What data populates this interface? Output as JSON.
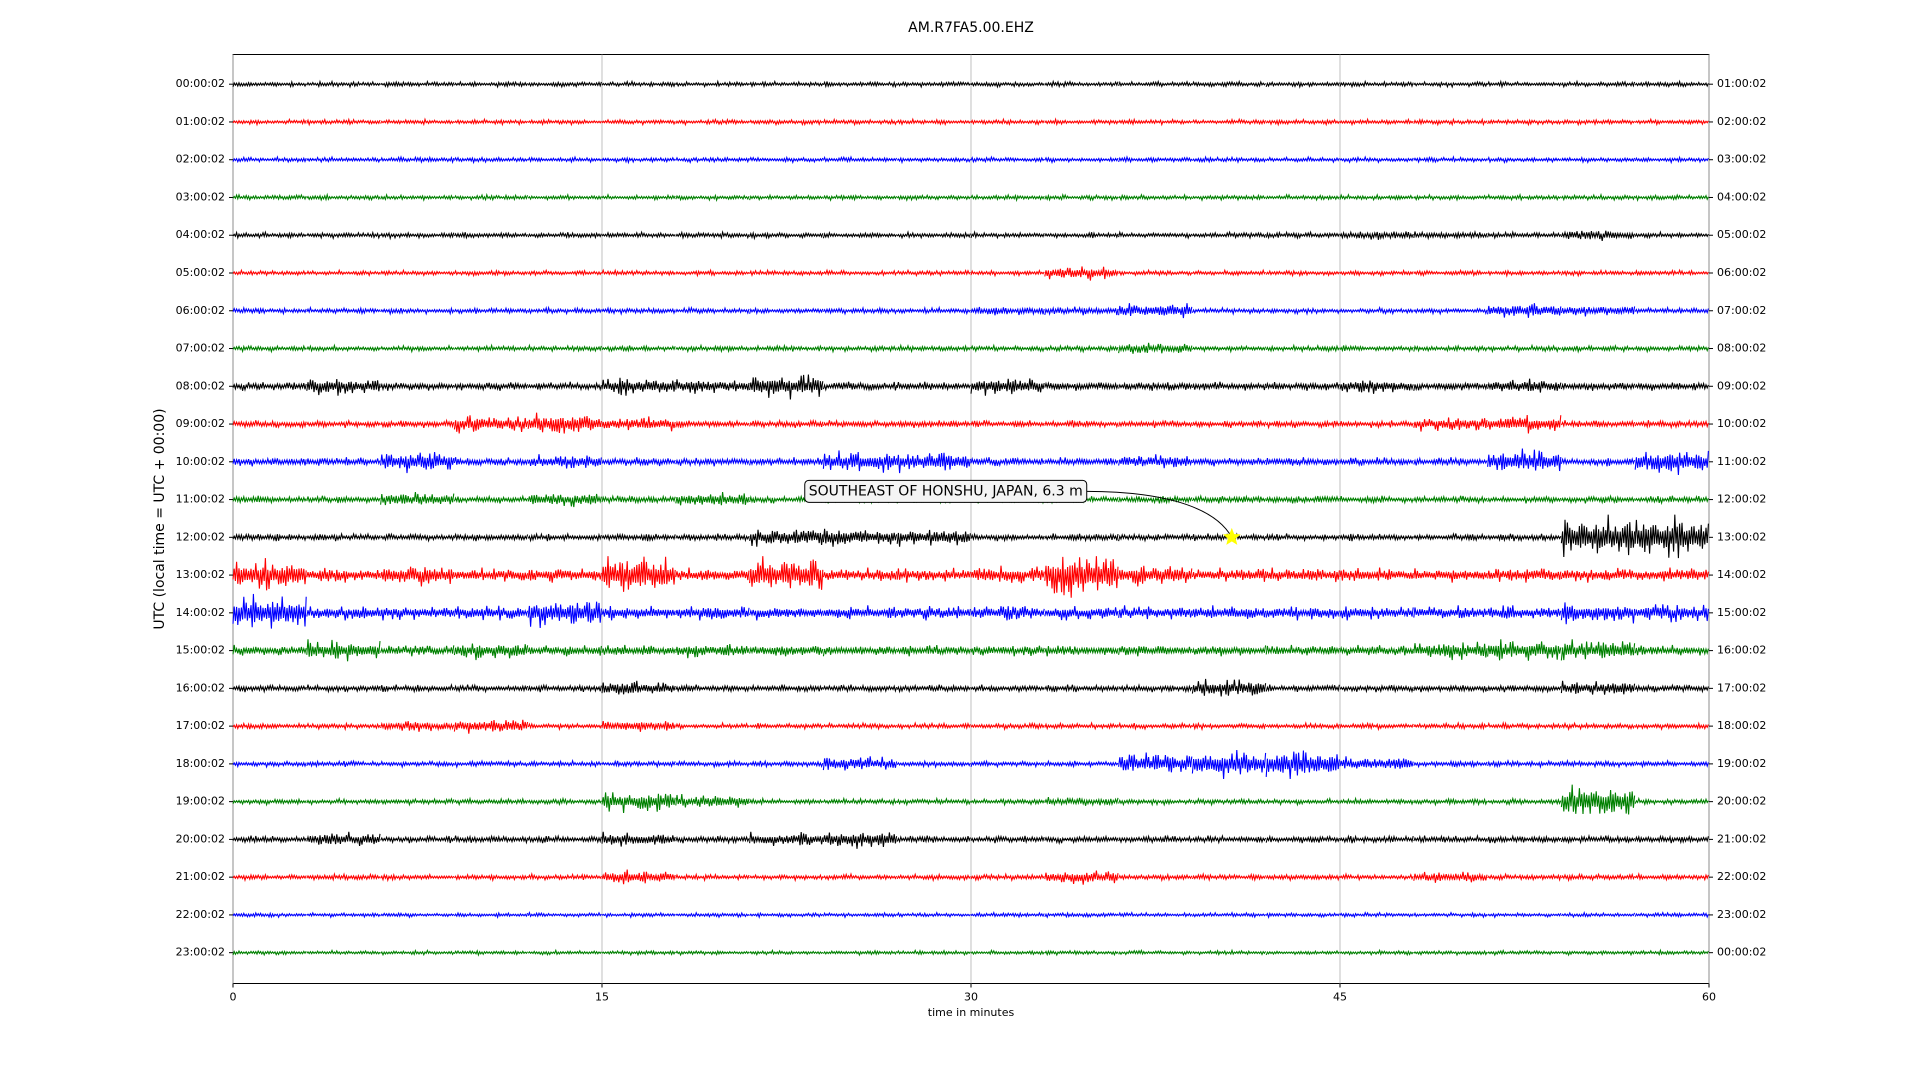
{
  "chart_data": {
    "type": "dayplot",
    "title": "AM.R7FA5.00.EHZ",
    "xlabel": "time in minutes",
    "ylabel": "UTC (local time = UTC + 00:00)",
    "xlim": [
      0,
      60
    ],
    "xticks": [
      0,
      15,
      30,
      45,
      60
    ],
    "grid": true,
    "x": [
      0,
      3,
      6,
      9,
      12,
      15,
      18,
      21,
      24,
      27,
      30,
      33,
      36,
      39,
      42,
      45,
      48,
      51,
      54,
      57
    ],
    "right_labels": [
      "01:00:02",
      "02:00:02",
      "03:00:02",
      "04:00:02",
      "05:00:02",
      "06:00:02",
      "07:00:02",
      "08:00:02",
      "09:00:02",
      "10:00:02",
      "11:00:02",
      "12:00:02",
      "13:00:02",
      "14:00:02",
      "15:00:02",
      "16:00:02",
      "17:00:02",
      "18:00:02",
      "19:00:02",
      "20:00:02",
      "21:00:02",
      "22:00:02",
      "23:00:02",
      "00:00:02"
    ],
    "series": [
      {
        "name": "00:00:02",
        "color": "#000000",
        "values": [
          0.07,
          0.07,
          0.07,
          0.07,
          0.07,
          0.07,
          0.07,
          0.07,
          0.07,
          0.07,
          0.07,
          0.07,
          0.07,
          0.07,
          0.07,
          0.07,
          0.07,
          0.07,
          0.07,
          0.07
        ]
      },
      {
        "name": "01:00:02",
        "color": "#ff0000",
        "values": [
          0.07,
          0.07,
          0.07,
          0.07,
          0.07,
          0.07,
          0.07,
          0.07,
          0.07,
          0.07,
          0.07,
          0.07,
          0.07,
          0.07,
          0.07,
          0.07,
          0.07,
          0.07,
          0.07,
          0.07
        ]
      },
      {
        "name": "02:00:02",
        "color": "#0000ff",
        "values": [
          0.07,
          0.07,
          0.07,
          0.07,
          0.07,
          0.07,
          0.07,
          0.07,
          0.07,
          0.07,
          0.07,
          0.07,
          0.07,
          0.07,
          0.07,
          0.07,
          0.07,
          0.07,
          0.07,
          0.07
        ]
      },
      {
        "name": "03:00:02",
        "color": "#008000",
        "values": [
          0.07,
          0.07,
          0.07,
          0.07,
          0.07,
          0.07,
          0.07,
          0.07,
          0.07,
          0.07,
          0.07,
          0.07,
          0.07,
          0.07,
          0.07,
          0.07,
          0.07,
          0.07,
          0.07,
          0.07
        ]
      },
      {
        "name": "04:00:02",
        "color": "#000000",
        "values": [
          0.08,
          0.08,
          0.08,
          0.08,
          0.08,
          0.08,
          0.08,
          0.08,
          0.08,
          0.08,
          0.08,
          0.08,
          0.08,
          0.08,
          0.08,
          0.12,
          0.1,
          0.08,
          0.15,
          0.08
        ]
      },
      {
        "name": "05:00:02",
        "color": "#ff0000",
        "values": [
          0.07,
          0.07,
          0.07,
          0.07,
          0.07,
          0.07,
          0.07,
          0.07,
          0.07,
          0.07,
          0.07,
          0.2,
          0.07,
          0.07,
          0.07,
          0.07,
          0.07,
          0.07,
          0.07,
          0.07
        ]
      },
      {
        "name": "06:00:02",
        "color": "#0000ff",
        "values": [
          0.08,
          0.08,
          0.08,
          0.08,
          0.08,
          0.08,
          0.08,
          0.08,
          0.08,
          0.08,
          0.12,
          0.12,
          0.2,
          0.08,
          0.08,
          0.08,
          0.08,
          0.2,
          0.15,
          0.08
        ]
      },
      {
        "name": "07:00:02",
        "color": "#008000",
        "values": [
          0.08,
          0.08,
          0.08,
          0.08,
          0.08,
          0.08,
          0.08,
          0.08,
          0.08,
          0.08,
          0.08,
          0.08,
          0.15,
          0.08,
          0.08,
          0.08,
          0.08,
          0.08,
          0.08,
          0.08
        ]
      },
      {
        "name": "08:00:02",
        "color": "#000000",
        "values": [
          0.12,
          0.25,
          0.12,
          0.12,
          0.12,
          0.25,
          0.2,
          0.35,
          0.12,
          0.12,
          0.25,
          0.12,
          0.12,
          0.12,
          0.12,
          0.2,
          0.12,
          0.2,
          0.12,
          0.12
        ]
      },
      {
        "name": "09:00:02",
        "color": "#ff0000",
        "values": [
          0.1,
          0.1,
          0.1,
          0.25,
          0.3,
          0.2,
          0.1,
          0.1,
          0.1,
          0.1,
          0.1,
          0.1,
          0.1,
          0.1,
          0.1,
          0.1,
          0.2,
          0.25,
          0.1,
          0.1
        ]
      },
      {
        "name": "10:00:02",
        "color": "#0000ff",
        "values": [
          0.12,
          0.12,
          0.3,
          0.12,
          0.2,
          0.12,
          0.12,
          0.12,
          0.3,
          0.3,
          0.12,
          0.12,
          0.2,
          0.12,
          0.12,
          0.12,
          0.12,
          0.35,
          0.12,
          0.35
        ]
      },
      {
        "name": "11:00:02",
        "color": "#008000",
        "values": [
          0.1,
          0.1,
          0.2,
          0.1,
          0.2,
          0.1,
          0.2,
          0.1,
          0.1,
          0.1,
          0.1,
          0.1,
          0.1,
          0.1,
          0.1,
          0.1,
          0.1,
          0.1,
          0.1,
          0.1
        ]
      },
      {
        "name": "12:00:02",
        "color": "#000000",
        "values": [
          0.1,
          0.1,
          0.1,
          0.1,
          0.1,
          0.1,
          0.1,
          0.25,
          0.25,
          0.25,
          0.1,
          0.1,
          0.1,
          0.1,
          0.1,
          0.1,
          0.1,
          0.1,
          0.6,
          0.6
        ]
      },
      {
        "name": "13:00:02",
        "color": "#ff0000",
        "values": [
          0.45,
          0.2,
          0.3,
          0.2,
          0.2,
          0.5,
          0.2,
          0.5,
          0.2,
          0.2,
          0.25,
          0.6,
          0.3,
          0.2,
          0.2,
          0.2,
          0.2,
          0.2,
          0.2,
          0.2
        ]
      },
      {
        "name": "14:00:02",
        "color": "#0000ff",
        "values": [
          0.5,
          0.2,
          0.2,
          0.2,
          0.4,
          0.2,
          0.2,
          0.2,
          0.2,
          0.2,
          0.2,
          0.2,
          0.2,
          0.2,
          0.2,
          0.2,
          0.2,
          0.2,
          0.3,
          0.25
        ]
      },
      {
        "name": "15:00:02",
        "color": "#008000",
        "values": [
          0.15,
          0.3,
          0.15,
          0.25,
          0.15,
          0.15,
          0.2,
          0.15,
          0.15,
          0.15,
          0.15,
          0.15,
          0.15,
          0.15,
          0.15,
          0.15,
          0.25,
          0.3,
          0.3,
          0.15
        ]
      },
      {
        "name": "16:00:02",
        "color": "#000000",
        "values": [
          0.1,
          0.1,
          0.1,
          0.1,
          0.1,
          0.2,
          0.1,
          0.1,
          0.1,
          0.1,
          0.1,
          0.1,
          0.1,
          0.25,
          0.1,
          0.1,
          0.1,
          0.1,
          0.2,
          0.1
        ]
      },
      {
        "name": "17:00:02",
        "color": "#ff0000",
        "values": [
          0.08,
          0.08,
          0.15,
          0.2,
          0.08,
          0.15,
          0.08,
          0.08,
          0.08,
          0.08,
          0.08,
          0.08,
          0.08,
          0.08,
          0.08,
          0.08,
          0.08,
          0.08,
          0.08,
          0.08
        ]
      },
      {
        "name": "18:00:02",
        "color": "#0000ff",
        "values": [
          0.08,
          0.08,
          0.08,
          0.08,
          0.08,
          0.08,
          0.08,
          0.08,
          0.2,
          0.08,
          0.08,
          0.08,
          0.3,
          0.4,
          0.4,
          0.2,
          0.08,
          0.08,
          0.08,
          0.08
        ]
      },
      {
        "name": "19:00:02",
        "color": "#008000",
        "values": [
          0.08,
          0.08,
          0.08,
          0.08,
          0.08,
          0.3,
          0.2,
          0.08,
          0.08,
          0.08,
          0.08,
          0.12,
          0.08,
          0.08,
          0.08,
          0.08,
          0.08,
          0.08,
          0.45,
          0.08
        ]
      },
      {
        "name": "20:00:02",
        "color": "#000000",
        "values": [
          0.1,
          0.2,
          0.1,
          0.1,
          0.1,
          0.2,
          0.1,
          0.2,
          0.25,
          0.1,
          0.1,
          0.1,
          0.1,
          0.1,
          0.1,
          0.1,
          0.1,
          0.1,
          0.1,
          0.1
        ]
      },
      {
        "name": "21:00:02",
        "color": "#ff0000",
        "values": [
          0.08,
          0.08,
          0.08,
          0.08,
          0.08,
          0.2,
          0.08,
          0.08,
          0.08,
          0.08,
          0.08,
          0.2,
          0.08,
          0.08,
          0.08,
          0.08,
          0.15,
          0.08,
          0.08,
          0.08
        ]
      },
      {
        "name": "22:00:02",
        "color": "#0000ff",
        "values": [
          0.06,
          0.06,
          0.06,
          0.06,
          0.06,
          0.06,
          0.06,
          0.06,
          0.06,
          0.06,
          0.06,
          0.06,
          0.06,
          0.06,
          0.06,
          0.06,
          0.06,
          0.06,
          0.06,
          0.06
        ]
      },
      {
        "name": "23:00:02",
        "color": "#008000",
        "values": [
          0.06,
          0.06,
          0.06,
          0.06,
          0.06,
          0.06,
          0.06,
          0.06,
          0.06,
          0.06,
          0.06,
          0.06,
          0.06,
          0.06,
          0.06,
          0.06,
          0.06,
          0.06,
          0.06,
          0.06
        ]
      }
    ],
    "annotation": {
      "text": "SOUTHEAST OF HONSHU, JAPAN, 6.3 m",
      "x": 40.6,
      "row": 12,
      "marker_color": "#ffff00"
    }
  }
}
